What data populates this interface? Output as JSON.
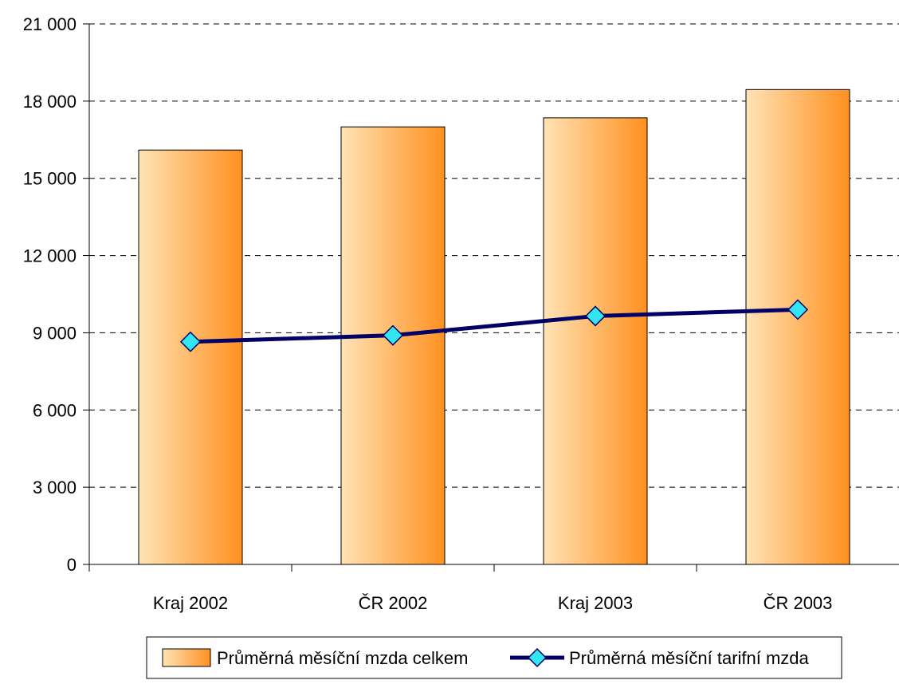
{
  "chart_data": {
    "type": "bar",
    "categories": [
      "Kraj 2002",
      "ČR 2002",
      "Kraj 2003",
      "ČR 2003"
    ],
    "series": [
      {
        "name": "Průměrná měsíční mzda celkem",
        "type": "bar",
        "values": [
          16100,
          17000,
          17350,
          18450
        ]
      },
      {
        "name": "Průměrná měsíční tarifní mzda",
        "type": "line",
        "values": [
          8650,
          8900,
          9650,
          9900
        ]
      }
    ],
    "y_ticks": [
      "0",
      "3 000",
      "6 000",
      "9 000",
      "12 000",
      "15 000",
      "18 000",
      "21 000"
    ],
    "ylim": [
      0,
      21000
    ],
    "y_step": 3000,
    "grid": "horizontal dashed",
    "legend_position": "bottom",
    "colors": {
      "bar_light": "#FFE3B5",
      "bar_dark": "#FF9020",
      "bar_stroke": "#000000",
      "line": "#000066",
      "marker": "#33E5F2",
      "marker_stroke": "#000066",
      "grid": "#000000",
      "axis": "#000000"
    }
  }
}
